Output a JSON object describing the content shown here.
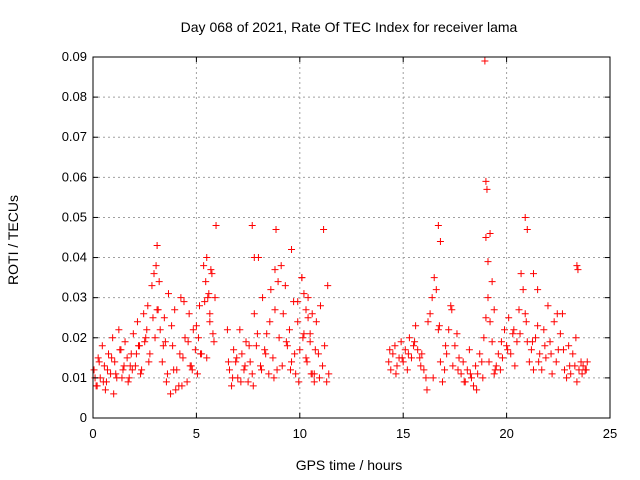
{
  "chart_data": {
    "type": "scatter",
    "title": "Day 068 of 2021, Rate Of TEC Index for receiver lama",
    "xlabel": "GPS time / hours",
    "ylabel": "ROTI / TECUs",
    "xlim": [
      0,
      25
    ],
    "ylim": [
      0,
      0.09
    ],
    "xticks": [
      0,
      5,
      10,
      15,
      20,
      25
    ],
    "xtick_labels": [
      "0",
      "5",
      "10",
      "15",
      "20",
      "25"
    ],
    "yticks": [
      0,
      0.01,
      0.02,
      0.03,
      0.04,
      0.05,
      0.06,
      0.07,
      0.08,
      0.09
    ],
    "ytick_labels": [
      "0",
      "0.01",
      "0.02",
      "0.03",
      "0.04",
      "0.05",
      "0.06",
      "0.07",
      "0.08",
      "0.09"
    ],
    "grid": true,
    "marker": "+",
    "color": "#ff0000",
    "series": [
      {
        "name": "ROTI",
        "x": [
          0.05,
          0.15,
          0.25,
          0.35,
          0.45,
          0.55,
          0.65,
          0.75,
          0.85,
          0.95,
          1.05,
          1.15,
          1.25,
          1.35,
          1.45,
          1.55,
          1.65,
          1.75,
          1.85,
          1.95,
          2.05,
          2.15,
          2.25,
          2.35,
          2.45,
          2.55,
          2.65,
          2.75,
          2.85,
          2.95,
          3.05,
          3.1,
          3.15,
          3.25,
          3.35,
          3.45,
          3.55,
          3.65,
          3.75,
          3.85,
          3.95,
          4.05,
          4.15,
          4.25,
          4.35,
          4.45,
          4.55,
          4.65,
          4.75,
          4.85,
          4.95,
          5.05,
          5.15,
          5.25,
          5.35,
          5.45,
          5.5,
          5.55,
          5.65,
          5.75,
          5.85,
          5.95,
          0.1,
          0.3,
          0.5,
          0.7,
          0.9,
          1.1,
          1.3,
          1.5,
          1.7,
          1.9,
          2.1,
          2.3,
          2.5,
          2.7,
          2.9,
          3.0,
          3.2,
          3.4,
          3.6,
          3.8,
          4.0,
          4.2,
          4.4,
          4.6,
          4.8,
          5.0,
          5.2,
          5.4,
          5.6,
          5.8,
          0.2,
          0.6,
          1.0,
          1.4,
          1.8,
          2.2,
          2.6,
          3.1,
          3.5,
          3.9,
          4.3,
          4.7,
          5.1,
          5.5,
          5.9,
          5.7,
          5.65,
          6.5,
          6.6,
          6.7,
          6.8,
          6.9,
          7.0,
          7.1,
          7.2,
          7.3,
          7.4,
          7.5,
          7.6,
          7.7,
          7.8,
          7.9,
          8.0,
          8.1,
          8.2,
          8.3,
          8.4,
          8.5,
          8.6,
          8.7,
          8.8,
          8.9,
          9.0,
          9.1,
          9.2,
          9.3,
          9.4,
          9.5,
          9.6,
          9.7,
          9.8,
          9.9,
          10.0,
          10.1,
          10.2,
          10.3,
          10.4,
          10.5,
          10.6,
          10.7,
          10.8,
          10.9,
          11.0,
          11.1,
          11.2,
          11.3,
          11.4,
          6.55,
          6.75,
          6.95,
          7.15,
          7.35,
          7.55,
          7.75,
          7.95,
          8.15,
          8.35,
          8.55,
          8.75,
          8.95,
          9.15,
          9.35,
          9.55,
          9.75,
          9.95,
          10.15,
          10.35,
          10.55,
          10.75,
          10.95,
          11.15,
          11.35,
          7.7,
          7.8,
          8.8,
          8.85,
          9.6,
          9.9,
          10.1,
          10.2,
          10.3,
          10.4,
          10.5,
          10.6,
          10.7,
          14.3,
          14.4,
          14.5,
          14.6,
          14.7,
          14.8,
          14.9,
          15.0,
          15.1,
          15.2,
          15.3,
          15.4,
          15.5,
          15.6,
          15.7,
          15.8,
          15.9,
          16.0,
          16.1,
          16.2,
          16.3,
          16.4,
          16.5,
          16.6,
          16.7,
          16.8,
          16.9,
          17.0,
          17.1,
          17.2,
          17.3,
          17.4,
          17.5,
          17.6,
          17.7,
          17.8,
          17.9,
          18.0,
          18.1,
          18.2,
          18.3,
          18.4,
          18.5,
          18.6,
          18.7,
          18.8,
          18.9,
          19.0,
          19.1,
          19.2,
          19.3,
          19.4,
          19.5,
          19.6,
          19.7,
          19.8,
          19.9,
          20.0,
          20.1,
          20.2,
          20.3,
          20.4,
          20.5,
          20.6,
          20.7,
          20.8,
          20.9,
          21.0,
          21.1,
          21.2,
          21.3,
          21.4,
          21.5,
          21.6,
          21.7,
          21.8,
          21.9,
          22.0,
          22.1,
          22.2,
          22.3,
          22.4,
          22.5,
          22.6,
          22.7,
          22.8,
          22.9,
          23.0,
          23.1,
          23.2,
          23.3,
          23.4,
          23.5,
          23.6,
          23.7,
          23.8,
          23.9,
          14.35,
          14.65,
          14.95,
          15.25,
          15.55,
          15.85,
          16.15,
          16.45,
          16.75,
          17.05,
          17.35,
          17.65,
          17.95,
          18.25,
          18.55,
          18.85,
          19.15,
          19.45,
          19.75,
          20.05,
          20.35,
          20.65,
          20.95,
          21.25,
          21.55,
          21.85,
          22.15,
          22.45,
          22.75,
          23.05,
          23.35,
          23.65,
          23.85,
          16.7,
          16.8,
          18.95,
          19.0,
          19.05,
          19.0,
          19.1,
          19.2,
          19.3,
          19.4,
          20.9,
          21.0,
          21.3,
          21.5,
          23.4,
          23.45
        ],
        "y": [
          0.012,
          0.008,
          0.015,
          0.01,
          0.018,
          0.013,
          0.009,
          0.016,
          0.011,
          0.02,
          0.014,
          0.01,
          0.022,
          0.017,
          0.012,
          0.019,
          0.015,
          0.01,
          0.016,
          0.021,
          0.013,
          0.024,
          0.018,
          0.012,
          0.026,
          0.02,
          0.028,
          0.016,
          0.033,
          0.036,
          0.038,
          0.043,
          0.027,
          0.022,
          0.014,
          0.025,
          0.009,
          0.031,
          0.006,
          0.018,
          0.027,
          0.012,
          0.008,
          0.03,
          0.015,
          0.02,
          0.009,
          0.026,
          0.013,
          0.022,
          0.017,
          0.011,
          0.028,
          0.016,
          0.038,
          0.034,
          0.04,
          0.03,
          0.024,
          0.036,
          0.019,
          0.048,
          0.01,
          0.014,
          0.009,
          0.012,
          0.015,
          0.011,
          0.017,
          0.013,
          0.009,
          0.012,
          0.016,
          0.011,
          0.019,
          0.014,
          0.025,
          0.02,
          0.034,
          0.018,
          0.011,
          0.023,
          0.007,
          0.016,
          0.029,
          0.019,
          0.012,
          0.023,
          0.016,
          0.029,
          0.031,
          0.021,
          0.008,
          0.007,
          0.006,
          0.01,
          0.013,
          0.018,
          0.022,
          0.027,
          0.019,
          0.012,
          0.008,
          0.013,
          0.02,
          0.015,
          0.03,
          0.037,
          0.026,
          0.022,
          0.012,
          0.008,
          0.017,
          0.014,
          0.01,
          0.022,
          0.016,
          0.012,
          0.019,
          0.009,
          0.014,
          0.011,
          0.026,
          0.018,
          0.04,
          0.013,
          0.03,
          0.017,
          0.021,
          0.011,
          0.032,
          0.015,
          0.027,
          0.012,
          0.02,
          0.038,
          0.026,
          0.033,
          0.018,
          0.022,
          0.014,
          0.029,
          0.011,
          0.024,
          0.017,
          0.035,
          0.021,
          0.015,
          0.03,
          0.019,
          0.026,
          0.011,
          0.024,
          0.016,
          0.028,
          0.013,
          0.018,
          0.009,
          0.011,
          0.014,
          0.01,
          0.015,
          0.009,
          0.013,
          0.018,
          0.008,
          0.021,
          0.012,
          0.016,
          0.024,
          0.01,
          0.034,
          0.013,
          0.019,
          0.012,
          0.016,
          0.009,
          0.02,
          0.014,
          0.011,
          0.017,
          0.01,
          0.047,
          0.033,
          0.048,
          0.04,
          0.037,
          0.047,
          0.042,
          0.029,
          0.035,
          0.031,
          0.027,
          0.025,
          0.021,
          0.011,
          0.009,
          0.014,
          0.012,
          0.016,
          0.018,
          0.013,
          0.015,
          0.019,
          0.014,
          0.017,
          0.012,
          0.02,
          0.015,
          0.018,
          0.023,
          0.017,
          0.015,
          0.016,
          0.012,
          0.01,
          0.024,
          0.026,
          0.03,
          0.035,
          0.032,
          0.022,
          0.014,
          0.009,
          0.012,
          0.016,
          0.022,
          0.028,
          0.013,
          0.018,
          0.021,
          0.015,
          0.011,
          0.014,
          0.009,
          0.012,
          0.017,
          0.01,
          0.008,
          0.013,
          0.011,
          0.016,
          0.014,
          0.02,
          0.025,
          0.03,
          0.024,
          0.019,
          0.011,
          0.013,
          0.016,
          0.012,
          0.015,
          0.022,
          0.018,
          0.025,
          0.016,
          0.021,
          0.013,
          0.019,
          0.027,
          0.036,
          0.032,
          0.026,
          0.019,
          0.014,
          0.017,
          0.012,
          0.02,
          0.023,
          0.016,
          0.012,
          0.022,
          0.015,
          0.028,
          0.019,
          0.011,
          0.024,
          0.014,
          0.017,
          0.021,
          0.026,
          0.012,
          0.01,
          0.018,
          0.011,
          0.016,
          0.013,
          0.009,
          0.012,
          0.014,
          0.013,
          0.012,
          0.014,
          0.017,
          0.011,
          0.015,
          0.016,
          0.019,
          0.013,
          0.007,
          0.01,
          0.023,
          0.018,
          0.027,
          0.012,
          0.009,
          0.011,
          0.007,
          0.01,
          0.014,
          0.012,
          0.019,
          0.017,
          0.022,
          0.021,
          0.024,
          0.019,
          0.014,
          0.018,
          0.016,
          0.026,
          0.017,
          0.013,
          0.02,
          0.011,
          0.012,
          0.048,
          0.044,
          0.089,
          0.059,
          0.057,
          0.045,
          0.039,
          0.046,
          0.034,
          0.027,
          0.05,
          0.047,
          0.036,
          0.032,
          0.038,
          0.037
        ]
      }
    ]
  }
}
